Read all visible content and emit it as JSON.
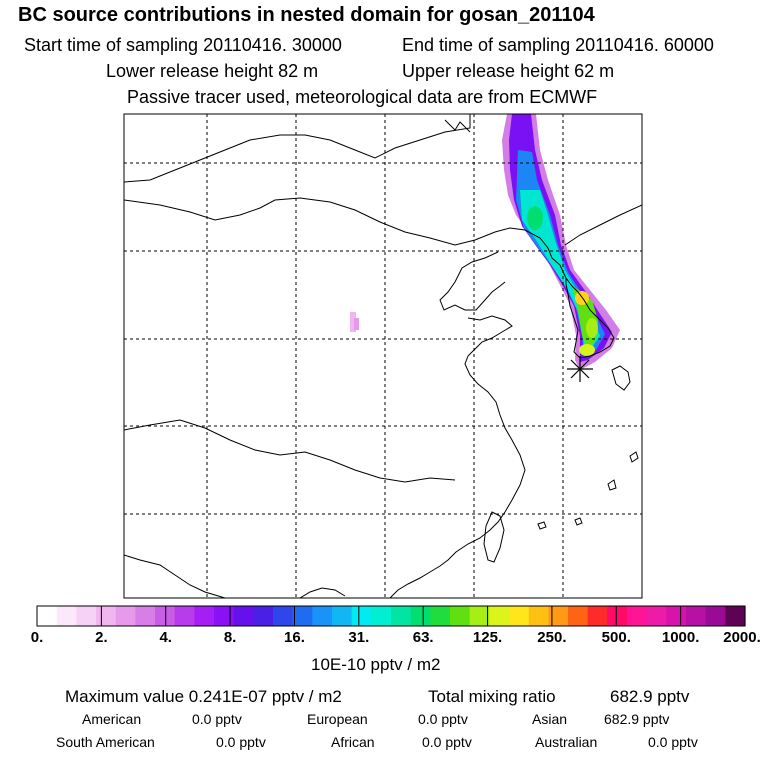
{
  "header": {
    "title": "BC  source contributions in nested domain for gosan_201104",
    "start_time": "Start time of sampling 20110416. 30000",
    "end_time": "End time of sampling 20110416. 60000",
    "lower_height": "Lower release height   82 m",
    "upper_height": "Upper release height   62 m",
    "note": "Passive tracer used, meteorological data are from ECMWF"
  },
  "colorbar": {
    "colors": [
      "#ffffff",
      "#fbe9fb",
      "#f6d2f6",
      "#f0b6f0",
      "#e69ae9",
      "#d97ee6",
      "#c95ee6",
      "#b93cec",
      "#a51ef3",
      "#8a10f6",
      "#6610ee",
      "#4a20e6",
      "#2e46ea",
      "#1f6cf1",
      "#1993f5",
      "#12b6f5",
      "#00ecf0",
      "#00eed2",
      "#00e4a4",
      "#00de72",
      "#20dc3c",
      "#60e010",
      "#a6ee14",
      "#dcf31c",
      "#ffe61a",
      "#ffc014",
      "#ff9a14",
      "#ff6414",
      "#ff2a2a",
      "#ff0a68",
      "#ff1496",
      "#ee1aa8",
      "#d614ac",
      "#b610a4",
      "#9a0a96",
      "#5e0256"
    ],
    "ticks": [
      "0.",
      "2.",
      "4.",
      "8.",
      "16.",
      "31.",
      "63.",
      "125.",
      "250.",
      "500.",
      "1000.",
      "2000."
    ],
    "unit": "10E-10 pptv / m2"
  },
  "summary": {
    "maximum": "Maximum value  0.241E-07 pptv / m2",
    "total_label": "Total mixing ratio",
    "total_value": "682.9 pptv"
  },
  "regions": [
    {
      "label": "American",
      "value": "0.0 pptv"
    },
    {
      "label": "European",
      "value": "0.0 pptv"
    },
    {
      "label": "Asian",
      "value": "682.9 pptv"
    },
    {
      "label": "South American",
      "value": "0.0 pptv"
    },
    {
      "label": "African",
      "value": "0.0 pptv"
    },
    {
      "label": "Australian",
      "value": "0.0 pptv"
    }
  ]
}
